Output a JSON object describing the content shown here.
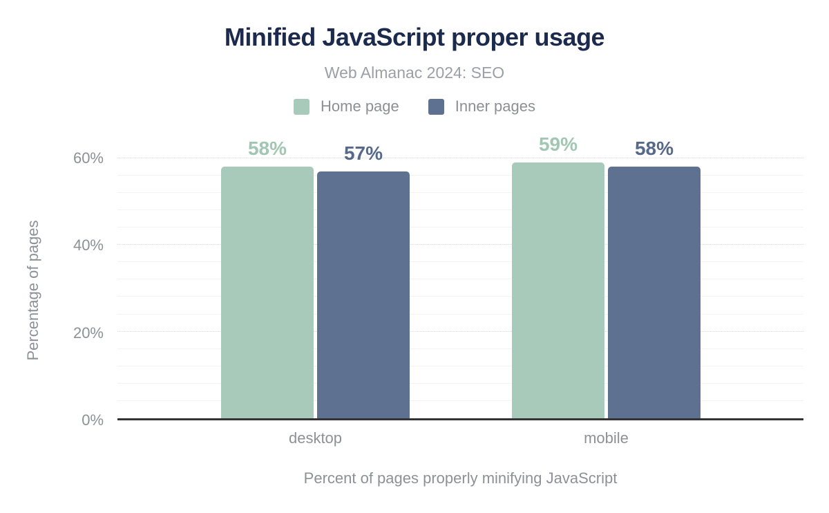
{
  "header": {
    "title": "Minified JavaScript proper usage",
    "subtitle": "Web Almanac 2024: SEO"
  },
  "chart_data": {
    "type": "bar",
    "title": "Minified JavaScript proper usage",
    "subtitle": "Web Almanac 2024: SEO",
    "categories": [
      "desktop",
      "mobile"
    ],
    "series": [
      {
        "name": "Home page",
        "values": [
          58,
          59
        ],
        "color": "#a8caba",
        "label_color": "#a1c7b3"
      },
      {
        "name": "Inner pages",
        "values": [
          57,
          58
        ],
        "color": "#5f7190",
        "label_color": "#57698b"
      }
    ],
    "value_suffix": "%",
    "ylabel": "Percentage of pages",
    "xlabel": "Percent of pages properly minifying JavaScript",
    "ylim": [
      0,
      70
    ],
    "yticks": [
      0,
      20,
      40,
      60
    ],
    "ytick_suffix": "%",
    "minor_grid_step": 4,
    "major_grid_step": 20,
    "grid": true,
    "legend_position": "top"
  },
  "colors": {
    "title": "#1c2b4d",
    "subtitle": "#9aa0a6",
    "axis_text": "#8d9196",
    "legend_text": "#8c9094",
    "axis_line": "#333333",
    "minor_grid": "#f3f3f3",
    "major_grid": "#d9d9d9",
    "background": "#ffffff"
  }
}
